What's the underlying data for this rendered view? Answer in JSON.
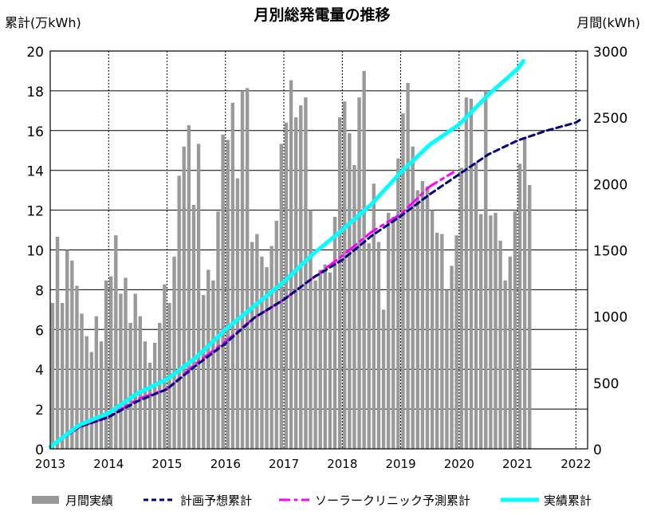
{
  "chart_data": {
    "type": "bar+line",
    "title": "月別総発電量の推移",
    "left_axis_label": "累計(万kWh)",
    "right_axis_label": "月間(kWh)",
    "x_ticks": [
      "2013",
      "2014",
      "2015",
      "2016",
      "2017",
      "2018",
      "2019",
      "2020",
      "2021",
      "2022"
    ],
    "x_range": [
      2013,
      2022.2
    ],
    "left_ylim": [
      0,
      20
    ],
    "left_ticks": [
      "0",
      "2",
      "4",
      "6",
      "8",
      "10",
      "12",
      "14",
      "16",
      "18",
      "20"
    ],
    "right_ylim": [
      0,
      3000
    ],
    "right_ticks": [
      "0",
      "500",
      "1000",
      "1500",
      "2000",
      "2500",
      "3000"
    ],
    "grid": "horizontal and yearly dotted vertical",
    "legend_position": "bottom",
    "colors": {
      "bars": "#999999",
      "plan": "#000080",
      "solar_clinic": "#ff00ff",
      "actual": "#00ffff",
      "grid": "#000000"
    },
    "legend": {
      "monthly": "月間実績",
      "plan": "計画予想累計",
      "solar_clinic": "ソーラークリニック予測累計",
      "actual": "実績累計"
    },
    "series": [
      {
        "name": "月間実績",
        "kind": "bar",
        "axis": "right",
        "start": "2013-01",
        "unit": "kWh",
        "values": [
          1100,
          1600,
          1100,
          1500,
          1420,
          1230,
          1020,
          850,
          730,
          1000,
          810,
          1270,
          1300,
          1610,
          1170,
          1290,
          950,
          1170,
          1000,
          810,
          650,
          800,
          950,
          1240,
          1100,
          1450,
          2060,
          2280,
          2440,
          1840,
          2300,
          1160,
          1350,
          1270,
          1790,
          2370,
          2330,
          2610,
          2040,
          2700,
          2720,
          1560,
          1620,
          1450,
          1370,
          1530,
          1720,
          2300,
          2460,
          2780,
          2500,
          2590,
          2650,
          1800,
          1270,
          1350,
          1390,
          1330,
          1750,
          2500,
          2620,
          2380,
          2140,
          2650,
          2850,
          1550,
          2000,
          1560,
          1050,
          1780,
          1750,
          2190,
          2530,
          2760,
          2280,
          1950,
          2020,
          1980,
          1800,
          1630,
          1620,
          1200,
          1380,
          1610,
          2120,
          2650,
          2640,
          2160,
          1770,
          2700,
          1760,
          1780,
          1570,
          1270,
          1450,
          1790,
          2150,
          2350,
          1990
        ]
      },
      {
        "name": "計画予想累計",
        "kind": "dashed-line",
        "axis": "left",
        "x": [
          2013.0,
          2013.5,
          2014.0,
          2014.5,
          2015.0,
          2015.5,
          2016.0,
          2016.5,
          2017.0,
          2017.5,
          2018.0,
          2018.5,
          2019.0,
          2019.5,
          2020.0,
          2020.5,
          2021.0,
          2021.5,
          2022.0,
          2022.1
        ],
        "values": [
          0.1,
          1.1,
          1.6,
          2.4,
          3.0,
          4.2,
          5.3,
          6.6,
          7.5,
          8.6,
          9.5,
          10.7,
          11.7,
          12.8,
          13.8,
          14.8,
          15.5,
          16.0,
          16.4,
          16.6
        ]
      },
      {
        "name": "ソーラークリニック予測累計",
        "kind": "dash-dot-line",
        "axis": "left",
        "x": [
          2013.0,
          2013.5,
          2014.0,
          2014.5,
          2015.0,
          2015.5,
          2016.0,
          2016.5,
          2017.0,
          2017.5,
          2018.0,
          2018.5,
          2019.0,
          2019.5,
          2019.9
        ],
        "values": [
          0.1,
          1.1,
          1.6,
          2.5,
          3.0,
          4.3,
          5.4,
          6.6,
          7.5,
          8.6,
          9.7,
          10.9,
          11.8,
          13.2,
          13.9
        ]
      },
      {
        "name": "実績累計",
        "kind": "line",
        "axis": "left",
        "x": [
          2013.0,
          2013.5,
          2014.0,
          2014.5,
          2015.0,
          2015.5,
          2016.0,
          2016.5,
          2017.0,
          2017.5,
          2018.0,
          2018.5,
          2019.0,
          2019.5,
          2020.0,
          2020.5,
          2021.0,
          2021.1
        ],
        "values": [
          0.1,
          1.2,
          1.8,
          2.8,
          3.5,
          4.6,
          6.0,
          7.2,
          8.4,
          9.8,
          11.0,
          12.3,
          13.9,
          15.3,
          16.3,
          17.8,
          19.1,
          19.5
        ]
      }
    ]
  }
}
